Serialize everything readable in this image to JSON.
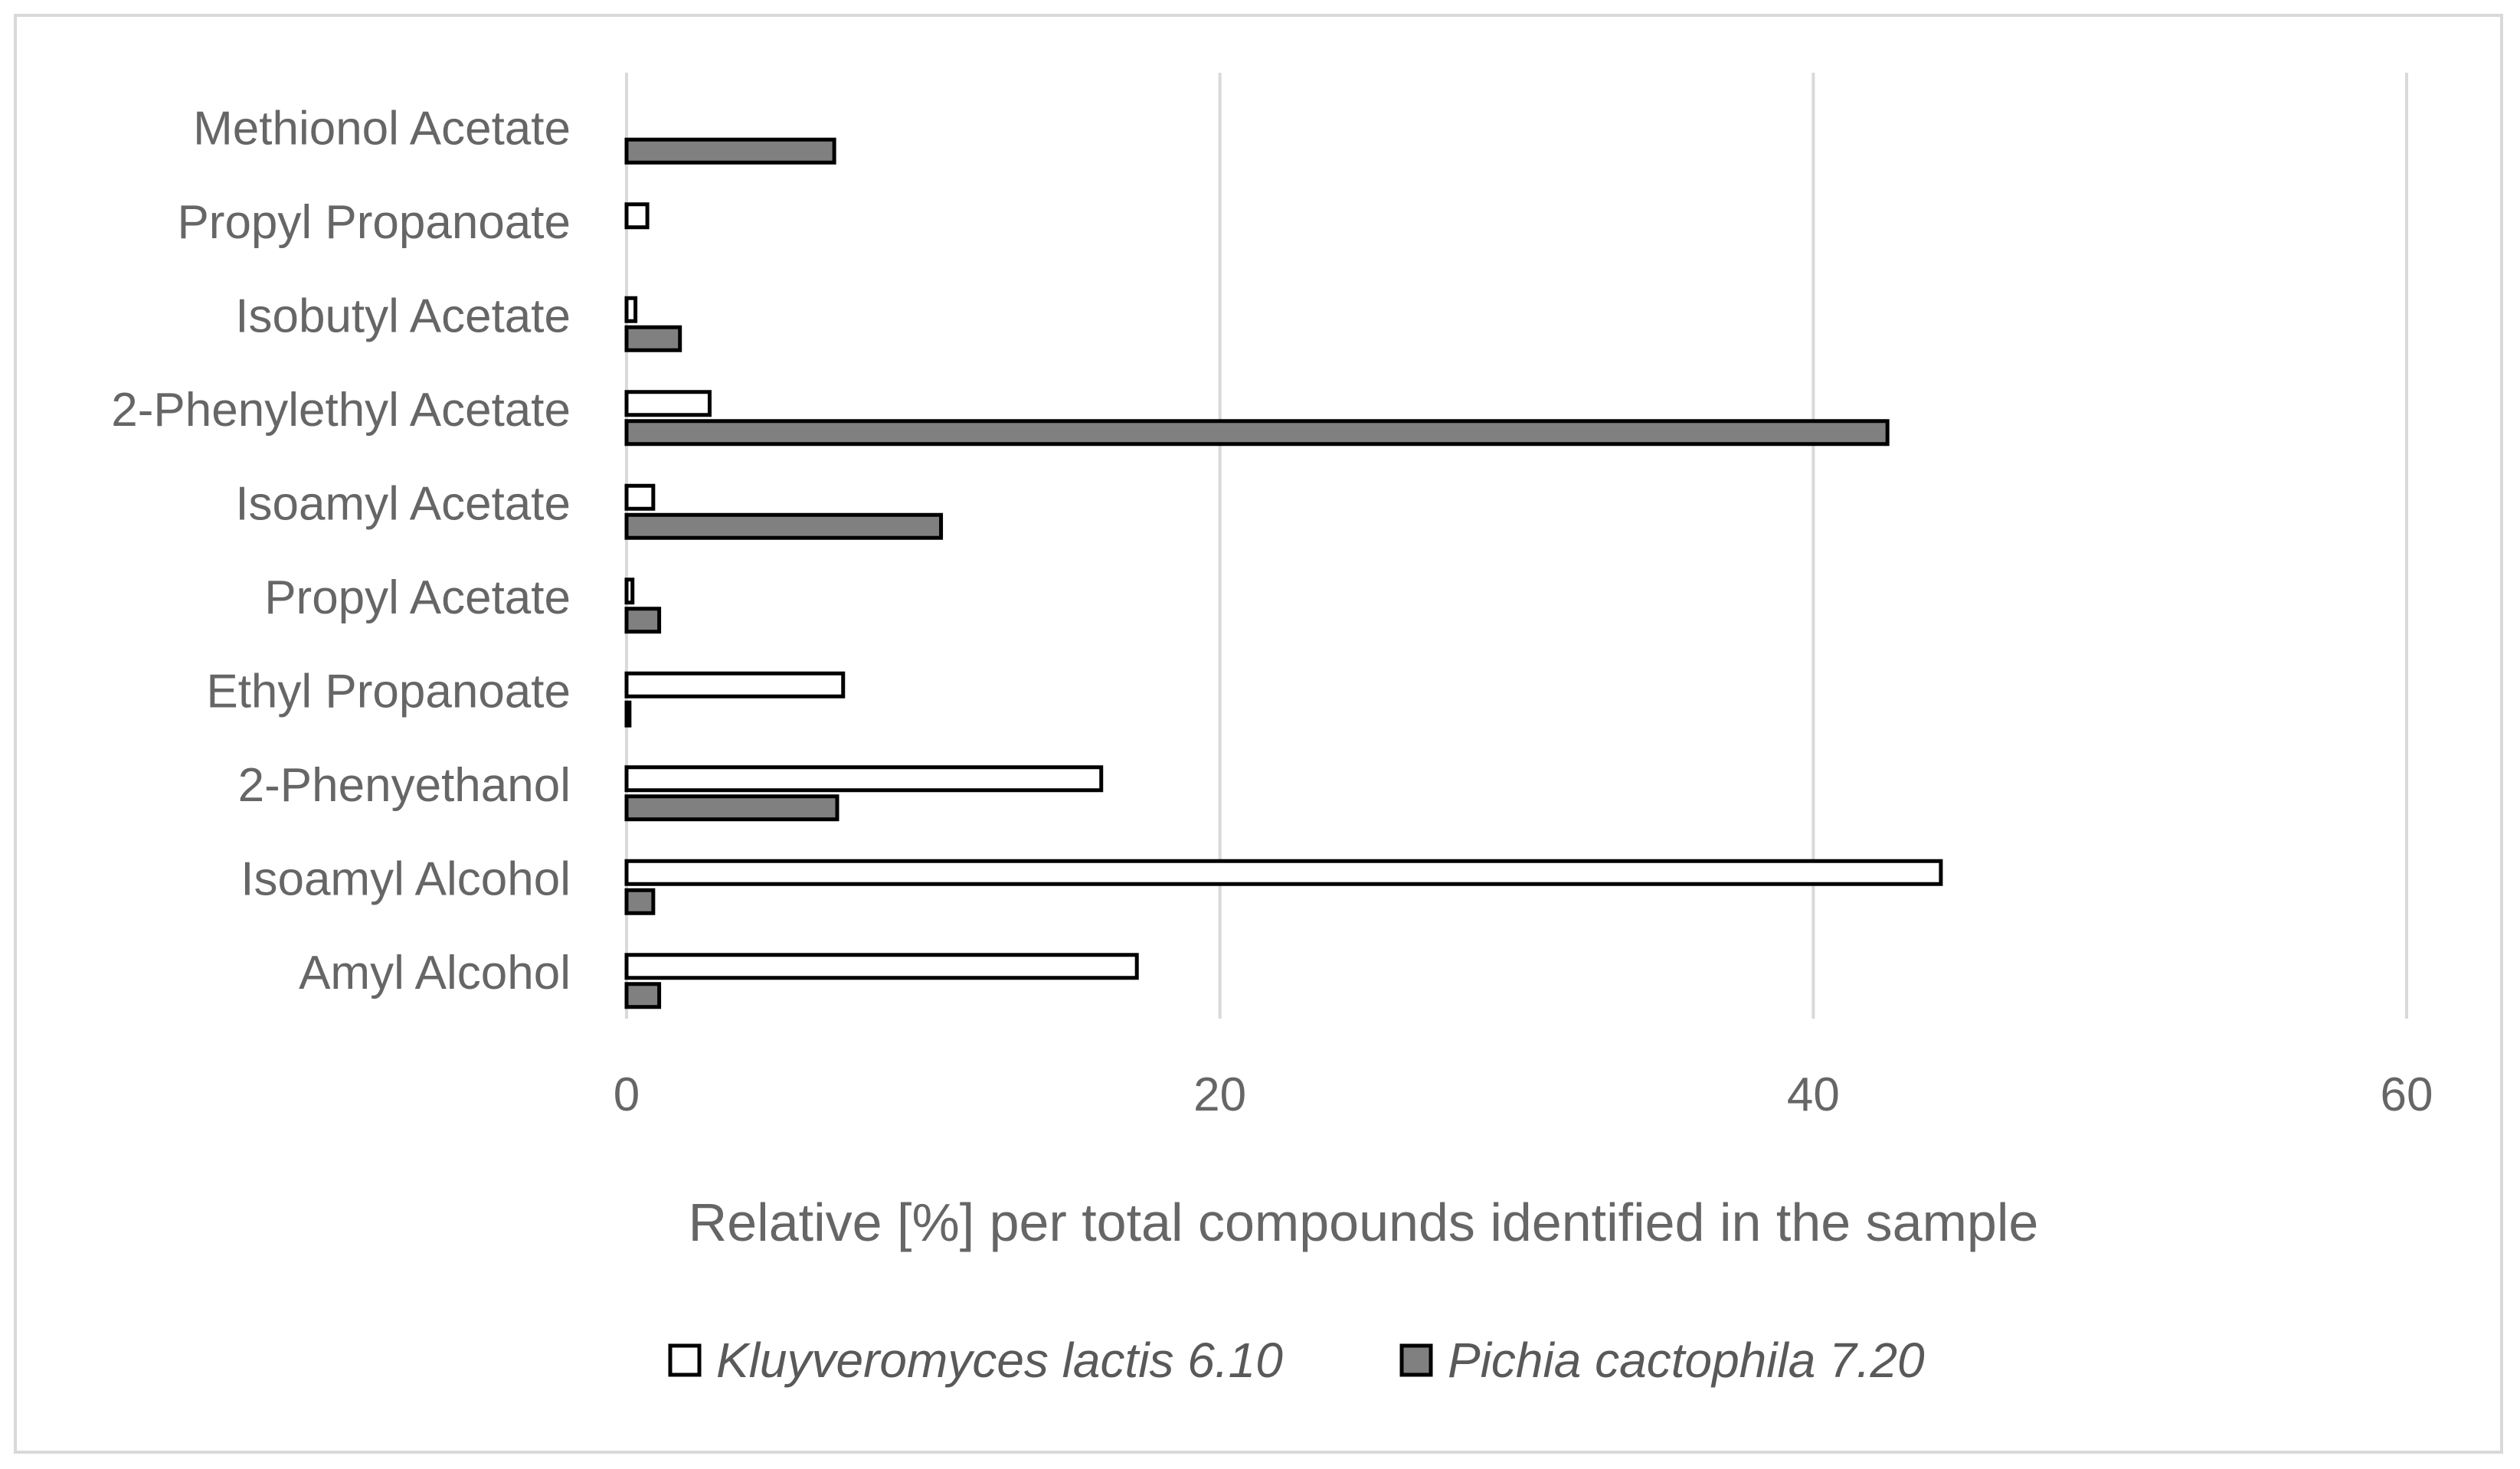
{
  "chart_data": {
    "type": "bar",
    "orientation": "horizontal",
    "categories": [
      "Amyl Alcohol",
      "Isoamyl Alcohol",
      "2-Phenyethanol",
      "Ethyl Propanoate",
      "Propyl Acetate",
      "Isoamyl Acetate",
      "2-Phenylethyl Acetate",
      "Isobutyl Acetate",
      "Propyl Propanoate",
      "Methionol Acetate"
    ],
    "series": [
      {
        "name": "Kluyveromyces lactis 6.10",
        "color": "#ffffff",
        "values": [
          17.2,
          44.3,
          16.0,
          7.3,
          0.2,
          0.9,
          2.8,
          0.3,
          0.7,
          0.0
        ]
      },
      {
        "name": "Pichia cactophila 7.20",
        "color": "#808080",
        "values": [
          1.1,
          0.9,
          7.1,
          0.1,
          1.1,
          10.6,
          42.5,
          1.8,
          0.0,
          7.0
        ]
      }
    ],
    "xlabel": "Relative [%] per total compounds identified in the sample",
    "ylabel": "",
    "title": "",
    "xlim": [
      0,
      60
    ],
    "xticks": [
      "0",
      "20",
      "40",
      "60"
    ],
    "grid": true,
    "legend": "bottom"
  }
}
